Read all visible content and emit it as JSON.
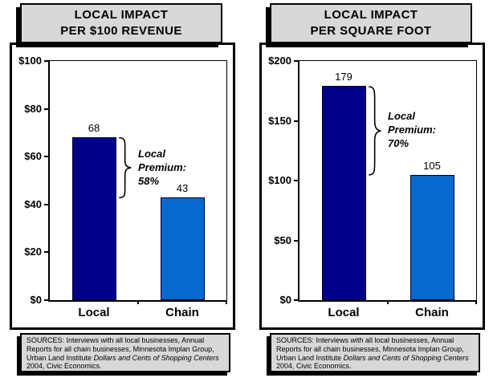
{
  "colors": {
    "background": "#FFFFFF",
    "box_fill": "#D8D8D8",
    "border": "#000000",
    "shadow": "#000000",
    "local_bar": "#00008B",
    "chain_bar": "#0669CE"
  },
  "chart_data": [
    {
      "type": "bar",
      "title": "LOCAL IMPACT PER $100 REVENUE",
      "title_lines": [
        "LOCAL IMPACT",
        "PER $100 REVENUE"
      ],
      "categories": [
        "Local",
        "Chain"
      ],
      "values": [
        68,
        43
      ],
      "value_labels": [
        "68",
        "43"
      ],
      "bar_colors": [
        "#00008B",
        "#0669CE"
      ],
      "ylim": [
        0,
        100
      ],
      "ytick_values": [
        0,
        20,
        40,
        60,
        80,
        100
      ],
      "ytick_labels": [
        "$0",
        "$20",
        "$40",
        "$60",
        "$80",
        "$100"
      ],
      "grid": false,
      "legend": "none",
      "annotation": "Local\nPremium:\n58%",
      "sources": {
        "prefix": "SOURCES: Interviews with all local businesses, Annual Reports for all chain businesses, Minnesota Implan Group, Urban Land Institute ",
        "italic": "Dollars and Cents of Shopping Centers",
        "suffix": " 2004, Civic Economics."
      }
    },
    {
      "type": "bar",
      "title": "LOCAL IMPACT PER SQUARE FOOT",
      "title_lines": [
        "LOCAL IMPACT",
        "PER SQUARE FOOT"
      ],
      "categories": [
        "Local",
        "Chain"
      ],
      "values": [
        179,
        105
      ],
      "value_labels": [
        "179",
        "105"
      ],
      "bar_colors": [
        "#00008B",
        "#0669CE"
      ],
      "ylim": [
        0,
        200
      ],
      "ytick_values": [
        0,
        50,
        100,
        150,
        200
      ],
      "ytick_labels": [
        "$0",
        "$50",
        "$100",
        "$150",
        "$200"
      ],
      "grid": false,
      "legend": "none",
      "annotation": "Local\nPremium:\n70%",
      "sources": {
        "prefix": "SOURCES: Interviews with all local businesses, Annual Reports for all chain businesses, Minnesota Implan Group, Urban Land Institute ",
        "italic": "Dollars and Cents of Shopping Centers",
        "suffix": " 2004, Civic Economics."
      }
    }
  ]
}
